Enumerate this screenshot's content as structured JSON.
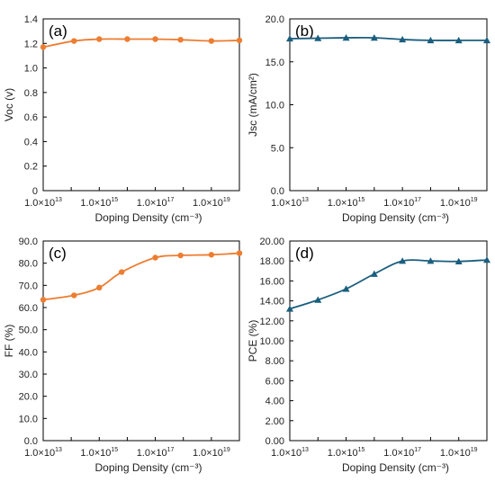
{
  "chart_data": [
    {
      "panel_label": "(a)",
      "type": "line",
      "xlabel": "Doping Density (cm⁻³)",
      "ylabel": "Voc (v)",
      "xscale": "log",
      "xlim_exp": [
        13,
        20
      ],
      "x_tick_labels": [
        {
          "base": "1.0×10",
          "exp": "13",
          "pos": 13
        },
        {
          "base": "1.0×10",
          "exp": "15",
          "pos": 15
        },
        {
          "base": "1.0×10",
          "exp": "17",
          "pos": 17
        },
        {
          "base": "1.0×10",
          "exp": "19",
          "pos": 19
        }
      ],
      "ylim": [
        0,
        1.4
      ],
      "y_ticks": [
        0,
        0.2,
        0.4,
        0.6,
        0.8,
        1.0,
        1.2,
        1.4
      ],
      "y_tick_labels": [
        "0",
        "0.2",
        "0.4",
        "0.6",
        "0.8",
        "1.0",
        "1.2",
        "1.4"
      ],
      "color": "#ED7D31",
      "marker": "circle",
      "grid": false,
      "legend": "none",
      "series": [
        {
          "x_exp": [
            13,
            14.1,
            15,
            16,
            17,
            17.9,
            19,
            20
          ],
          "y": [
            1.17,
            1.22,
            1.235,
            1.235,
            1.235,
            1.23,
            1.22,
            1.225
          ]
        }
      ]
    },
    {
      "panel_label": "(b)",
      "type": "line",
      "xlabel": "Doping Density (cm⁻³)",
      "ylabel": "Jsc (mA/cm²)",
      "xscale": "log",
      "xlim_exp": [
        13,
        20
      ],
      "x_tick_labels": [
        {
          "base": "1.0×10",
          "exp": "13",
          "pos": 13
        },
        {
          "base": "1.0×10",
          "exp": "15",
          "pos": 15
        },
        {
          "base": "1.0×10",
          "exp": "17",
          "pos": 17
        },
        {
          "base": "1.0×10",
          "exp": "19",
          "pos": 19
        }
      ],
      "ylim": [
        0,
        20
      ],
      "y_ticks": [
        0,
        5,
        10,
        15,
        20
      ],
      "y_tick_labels": [
        "0.0",
        "5.0",
        "10.0",
        "15.0",
        "20.0"
      ],
      "color": "#1B5E7E",
      "marker": "triangle",
      "grid": false,
      "legend": "none",
      "series": [
        {
          "x_exp": [
            13,
            14,
            15,
            16,
            17,
            18,
            19,
            20
          ],
          "y": [
            17.7,
            17.75,
            17.8,
            17.8,
            17.6,
            17.5,
            17.5,
            17.5
          ]
        }
      ]
    },
    {
      "panel_label": "(c)",
      "type": "line",
      "xlabel": "Doping Density (cm⁻³)",
      "ylabel": "FF (%)",
      "xscale": "log",
      "xlim_exp": [
        13,
        20
      ],
      "x_tick_labels": [
        {
          "base": "1.0×10",
          "exp": "13",
          "pos": 13
        },
        {
          "base": "1.0×10",
          "exp": "15",
          "pos": 15
        },
        {
          "base": "1.0×10",
          "exp": "17",
          "pos": 17
        },
        {
          "base": "1.0×10",
          "exp": "19",
          "pos": 19
        }
      ],
      "ylim": [
        0,
        90
      ],
      "y_ticks": [
        0,
        10,
        20,
        30,
        40,
        50,
        60,
        70,
        80,
        90
      ],
      "y_tick_labels": [
        "0.0",
        "10.0",
        "20.0",
        "30.0",
        "40.0",
        "50.0",
        "60.0",
        "70.0",
        "80.0",
        "90.0"
      ],
      "color": "#ED7D31",
      "marker": "circle",
      "grid": false,
      "legend": "none",
      "series": [
        {
          "x_exp": [
            13,
            14.1,
            15,
            15.8,
            17,
            17.9,
            19,
            20
          ],
          "y": [
            63.5,
            65.5,
            69,
            76,
            82.5,
            83.5,
            83.8,
            84.5
          ]
        }
      ]
    },
    {
      "panel_label": "(d)",
      "type": "line",
      "xlabel": "Doping Density (cm⁻³)",
      "ylabel": "PCE (%)",
      "xscale": "log",
      "xlim_exp": [
        13,
        20
      ],
      "x_tick_labels": [
        {
          "base": "1.0×10",
          "exp": "13",
          "pos": 13
        },
        {
          "base": "1.0×10",
          "exp": "15",
          "pos": 15
        },
        {
          "base": "1.0×10",
          "exp": "17",
          "pos": 17
        },
        {
          "base": "1.0×10",
          "exp": "19",
          "pos": 19
        }
      ],
      "ylim": [
        0,
        20
      ],
      "y_ticks": [
        0,
        2,
        4,
        6,
        8,
        10,
        12,
        14,
        16,
        18,
        20
      ],
      "y_tick_labels": [
        "0.00",
        "2.00",
        "4.00",
        "6.00",
        "8.00",
        "10.00",
        "12.00",
        "14.00",
        "16.00",
        "18.00",
        "20.00"
      ],
      "color": "#1B5E7E",
      "marker": "triangle",
      "grid": false,
      "legend": "none",
      "series": [
        {
          "x_exp": [
            13,
            14,
            15,
            16,
            17,
            18,
            19,
            20
          ],
          "y": [
            13.2,
            14.1,
            15.2,
            16.7,
            18.0,
            18.0,
            17.95,
            18.1
          ]
        }
      ]
    }
  ]
}
